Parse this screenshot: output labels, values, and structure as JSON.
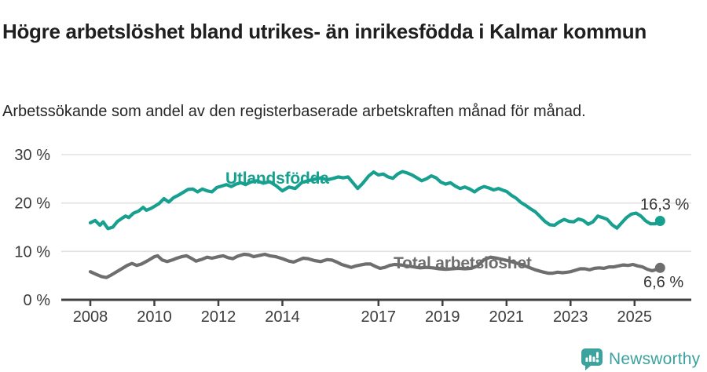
{
  "header": {
    "title": "Högre arbetslöshet bland utrikes- än inrikesfödda i Kalmar kommun",
    "subtitle": "Arbetssökande som andel av den registerbaserade arbetskraften månad för månad."
  },
  "footer": {
    "brand_name": "Newsworthy"
  },
  "colors": {
    "series_foreign": "#17a08f",
    "series_total": "#6e6e6e",
    "brand_teal": "#3ba29e",
    "axis": "#404040",
    "grid": "#e2e2e2",
    "tick_text": "#3b3b3b",
    "end_label_text": "#333333",
    "title_text": "#1f1f1f"
  },
  "chart_data": {
    "type": "line",
    "title": "Högre arbetslöshet bland utrikes- än inrikesfödda i Kalmar kommun",
    "subtitle": "Arbetssökande som andel av den registerbaserade arbetskraften månad för månad.",
    "x_axis": {
      "unit": "year-month (monthly series)",
      "ticks": [
        2008,
        2010,
        2012,
        2014,
        2017,
        2019,
        2021,
        2023,
        2025
      ],
      "tick_labels": [
        "2008",
        "2010",
        "2012",
        "2014",
        "2017",
        "2019",
        "2021",
        "2023",
        "2025"
      ],
      "range": [
        2007.1,
        2026.8
      ]
    },
    "y_axis": {
      "unit": "percent",
      "ticks": [
        0,
        10,
        20,
        30
      ],
      "tick_labels": [
        "0 %",
        "10 %",
        "20 %",
        "30 %"
      ],
      "range": [
        0,
        30
      ],
      "grid": true
    },
    "legend_position": "inline-labels-on-lines",
    "series": [
      {
        "name": "Utlandsfödda",
        "color": "#17a08f",
        "end_value": 16.3,
        "end_label": "16,3 %",
        "points": [
          [
            2008.0,
            15.9
          ],
          [
            2008.15,
            16.4
          ],
          [
            2008.3,
            15.4
          ],
          [
            2008.4,
            16.1
          ],
          [
            2008.55,
            14.7
          ],
          [
            2008.7,
            15.0
          ],
          [
            2008.85,
            16.2
          ],
          [
            2009.0,
            16.9
          ],
          [
            2009.1,
            17.3
          ],
          [
            2009.2,
            17.0
          ],
          [
            2009.35,
            17.9
          ],
          [
            2009.5,
            18.3
          ],
          [
            2009.65,
            19.1
          ],
          [
            2009.75,
            18.5
          ],
          [
            2009.9,
            18.9
          ],
          [
            2010.0,
            19.3
          ],
          [
            2010.15,
            19.9
          ],
          [
            2010.3,
            20.9
          ],
          [
            2010.45,
            20.2
          ],
          [
            2010.6,
            21.1
          ],
          [
            2010.75,
            21.6
          ],
          [
            2010.9,
            22.2
          ],
          [
            2011.05,
            22.8
          ],
          [
            2011.2,
            22.9
          ],
          [
            2011.35,
            22.3
          ],
          [
            2011.5,
            22.9
          ],
          [
            2011.65,
            22.5
          ],
          [
            2011.8,
            22.3
          ],
          [
            2011.95,
            23.2
          ],
          [
            2012.1,
            23.5
          ],
          [
            2012.25,
            23.8
          ],
          [
            2012.4,
            23.4
          ],
          [
            2012.55,
            23.9
          ],
          [
            2012.7,
            24.2
          ],
          [
            2012.85,
            23.8
          ],
          [
            2013.0,
            24.3
          ],
          [
            2013.2,
            24.6
          ],
          [
            2013.4,
            24.1
          ],
          [
            2013.6,
            24.4
          ],
          [
            2013.8,
            23.6
          ],
          [
            2014.0,
            22.5
          ],
          [
            2014.2,
            23.3
          ],
          [
            2014.4,
            23.0
          ],
          [
            2014.6,
            24.2
          ],
          [
            2014.8,
            24.6
          ],
          [
            2015.0,
            24.9
          ],
          [
            2015.2,
            25.2
          ],
          [
            2015.4,
            24.8
          ],
          [
            2015.6,
            25.1
          ],
          [
            2015.75,
            25.4
          ],
          [
            2015.9,
            25.2
          ],
          [
            2016.05,
            25.4
          ],
          [
            2016.2,
            24.2
          ],
          [
            2016.35,
            23.0
          ],
          [
            2016.5,
            24.0
          ],
          [
            2016.7,
            25.6
          ],
          [
            2016.85,
            26.4
          ],
          [
            2017.0,
            25.8
          ],
          [
            2017.15,
            26.0
          ],
          [
            2017.3,
            25.4
          ],
          [
            2017.45,
            25.1
          ],
          [
            2017.6,
            26.0
          ],
          [
            2017.75,
            26.5
          ],
          [
            2017.9,
            26.2
          ],
          [
            2018.05,
            25.8
          ],
          [
            2018.2,
            25.2
          ],
          [
            2018.35,
            24.6
          ],
          [
            2018.5,
            25.0
          ],
          [
            2018.65,
            25.6
          ],
          [
            2018.8,
            25.2
          ],
          [
            2018.95,
            24.3
          ],
          [
            2019.1,
            23.9
          ],
          [
            2019.25,
            24.2
          ],
          [
            2019.4,
            23.5
          ],
          [
            2019.55,
            23.0
          ],
          [
            2019.7,
            23.3
          ],
          [
            2019.85,
            22.9
          ],
          [
            2020.0,
            22.3
          ],
          [
            2020.15,
            23.0
          ],
          [
            2020.3,
            23.4
          ],
          [
            2020.45,
            23.1
          ],
          [
            2020.6,
            22.7
          ],
          [
            2020.75,
            23.0
          ],
          [
            2020.9,
            22.6
          ],
          [
            2021.0,
            22.4
          ],
          [
            2021.15,
            21.6
          ],
          [
            2021.3,
            21.0
          ],
          [
            2021.45,
            20.1
          ],
          [
            2021.6,
            19.5
          ],
          [
            2021.75,
            18.8
          ],
          [
            2021.9,
            18.2
          ],
          [
            2022.05,
            17.2
          ],
          [
            2022.2,
            16.2
          ],
          [
            2022.35,
            15.5
          ],
          [
            2022.5,
            15.4
          ],
          [
            2022.65,
            16.1
          ],
          [
            2022.8,
            16.6
          ],
          [
            2022.95,
            16.2
          ],
          [
            2023.1,
            16.1
          ],
          [
            2023.25,
            16.7
          ],
          [
            2023.4,
            16.4
          ],
          [
            2023.55,
            15.6
          ],
          [
            2023.7,
            16.1
          ],
          [
            2023.85,
            17.3
          ],
          [
            2024.0,
            17.0
          ],
          [
            2024.15,
            16.6
          ],
          [
            2024.3,
            15.5
          ],
          [
            2024.45,
            14.8
          ],
          [
            2024.6,
            15.9
          ],
          [
            2024.75,
            17.0
          ],
          [
            2024.9,
            17.7
          ],
          [
            2025.05,
            17.9
          ],
          [
            2025.2,
            17.3
          ],
          [
            2025.35,
            16.3
          ],
          [
            2025.5,
            15.7
          ],
          [
            2025.65,
            15.7
          ],
          [
            2025.8,
            16.3
          ]
        ]
      },
      {
        "name": "Total arbetslöshet",
        "color": "#6e6e6e",
        "end_value": 6.6,
        "end_label": "6,6 %",
        "points": [
          [
            2008.0,
            5.8
          ],
          [
            2008.2,
            5.2
          ],
          [
            2008.35,
            4.8
          ],
          [
            2008.5,
            4.6
          ],
          [
            2008.65,
            5.1
          ],
          [
            2008.8,
            5.7
          ],
          [
            2009.0,
            6.5
          ],
          [
            2009.15,
            7.1
          ],
          [
            2009.3,
            7.5
          ],
          [
            2009.45,
            7.1
          ],
          [
            2009.6,
            7.4
          ],
          [
            2009.8,
            8.1
          ],
          [
            2010.0,
            8.9
          ],
          [
            2010.1,
            9.1
          ],
          [
            2010.25,
            8.2
          ],
          [
            2010.4,
            7.9
          ],
          [
            2010.55,
            8.2
          ],
          [
            2010.7,
            8.6
          ],
          [
            2010.85,
            8.9
          ],
          [
            2011.0,
            9.1
          ],
          [
            2011.15,
            8.6
          ],
          [
            2011.3,
            8.0
          ],
          [
            2011.5,
            8.4
          ],
          [
            2011.65,
            8.8
          ],
          [
            2011.8,
            8.6
          ],
          [
            2012.0,
            8.9
          ],
          [
            2012.15,
            9.1
          ],
          [
            2012.3,
            8.7
          ],
          [
            2012.45,
            8.5
          ],
          [
            2012.6,
            9.0
          ],
          [
            2012.8,
            9.4
          ],
          [
            2012.95,
            9.3
          ],
          [
            2013.1,
            8.9
          ],
          [
            2013.3,
            9.2
          ],
          [
            2013.45,
            9.4
          ],
          [
            2013.6,
            9.1
          ],
          [
            2013.8,
            8.9
          ],
          [
            2014.0,
            8.5
          ],
          [
            2014.2,
            8.0
          ],
          [
            2014.35,
            7.8
          ],
          [
            2014.5,
            8.2
          ],
          [
            2014.65,
            8.6
          ],
          [
            2014.8,
            8.5
          ],
          [
            2015.0,
            8.1
          ],
          [
            2015.2,
            7.9
          ],
          [
            2015.4,
            8.3
          ],
          [
            2015.55,
            8.2
          ],
          [
            2015.7,
            7.8
          ],
          [
            2015.85,
            7.3
          ],
          [
            2016.0,
            7.0
          ],
          [
            2016.15,
            6.7
          ],
          [
            2016.3,
            7.0
          ],
          [
            2016.45,
            7.2
          ],
          [
            2016.6,
            7.4
          ],
          [
            2016.75,
            7.4
          ],
          [
            2016.9,
            6.9
          ],
          [
            2017.05,
            6.5
          ],
          [
            2017.2,
            6.7
          ],
          [
            2017.35,
            7.1
          ],
          [
            2017.5,
            7.3
          ],
          [
            2017.7,
            7.2
          ],
          [
            2017.9,
            7.0
          ],
          [
            2018.1,
            6.8
          ],
          [
            2018.3,
            6.6
          ],
          [
            2018.5,
            6.7
          ],
          [
            2018.7,
            6.6
          ],
          [
            2018.9,
            6.4
          ],
          [
            2019.1,
            6.3
          ],
          [
            2019.3,
            6.4
          ],
          [
            2019.5,
            6.5
          ],
          [
            2019.7,
            6.4
          ],
          [
            2019.9,
            6.5
          ],
          [
            2020.1,
            7.0
          ],
          [
            2020.3,
            8.3
          ],
          [
            2020.5,
            8.8
          ],
          [
            2020.7,
            8.6
          ],
          [
            2020.9,
            8.3
          ],
          [
            2021.1,
            8.0
          ],
          [
            2021.3,
            7.6
          ],
          [
            2021.5,
            7.2
          ],
          [
            2021.7,
            6.7
          ],
          [
            2021.9,
            6.2
          ],
          [
            2022.1,
            5.8
          ],
          [
            2022.3,
            5.5
          ],
          [
            2022.45,
            5.5
          ],
          [
            2022.6,
            5.7
          ],
          [
            2022.75,
            5.6
          ],
          [
            2022.9,
            5.7
          ],
          [
            2023.0,
            5.8
          ],
          [
            2023.15,
            6.1
          ],
          [
            2023.3,
            6.4
          ],
          [
            2023.45,
            6.4
          ],
          [
            2023.6,
            6.2
          ],
          [
            2023.75,
            6.5
          ],
          [
            2023.9,
            6.6
          ],
          [
            2024.05,
            6.5
          ],
          [
            2024.2,
            6.8
          ],
          [
            2024.35,
            6.8
          ],
          [
            2024.5,
            7.0
          ],
          [
            2024.65,
            7.2
          ],
          [
            2024.8,
            7.1
          ],
          [
            2024.95,
            7.3
          ],
          [
            2025.1,
            7.0
          ],
          [
            2025.25,
            6.8
          ],
          [
            2025.4,
            6.3
          ],
          [
            2025.55,
            6.0
          ],
          [
            2025.7,
            6.3
          ],
          [
            2025.8,
            6.6
          ]
        ]
      }
    ]
  }
}
